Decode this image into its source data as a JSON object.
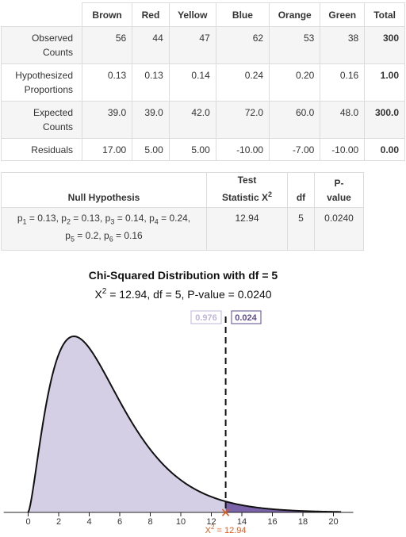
{
  "counts_table": {
    "columns": [
      "Brown",
      "Red",
      "Yellow",
      "Blue",
      "Orange",
      "Green",
      "Total"
    ],
    "rows": [
      {
        "label_line1": "Observed",
        "label_line2": "Counts",
        "values": [
          "56",
          "44",
          "47",
          "62",
          "53",
          "38"
        ],
        "total": "300"
      },
      {
        "label_line1": "Hypothesized",
        "label_line2": "Proportions",
        "values": [
          "0.13",
          "0.13",
          "0.14",
          "0.24",
          "0.20",
          "0.16"
        ],
        "total": "1.00"
      },
      {
        "label_line1": "Expected",
        "label_line2": "Counts",
        "values": [
          "39.0",
          "39.0",
          "42.0",
          "72.0",
          "60.0",
          "48.0"
        ],
        "total": "300.0"
      },
      {
        "label_line1": "Residuals",
        "label_line2": "",
        "values": [
          "17.00",
          "5.00",
          "5.00",
          "-10.00",
          "-7.00",
          "-10.00"
        ],
        "total": "0.00"
      }
    ]
  },
  "test_table": {
    "h_null": "Null Hypothesis",
    "h_stat_line1": "Test",
    "h_stat_line2": "Statistic X",
    "h_stat_sup": "2",
    "h_df": "df",
    "h_p_line1": "P-",
    "h_p_line2": "value",
    "null_p": "p",
    "null_1": "1",
    "null_1v": " = 0.13, ",
    "null_2": "2",
    "null_2v": " = 0.13, ",
    "null_3": "3",
    "null_3v": " = 0.14, ",
    "null_4": "4",
    "null_4v": " = 0.24,",
    "null_5": "5",
    "null_5v": " = 0.2, ",
    "null_6": "6",
    "null_6v": " = 0.16",
    "stat": "12.94",
    "df": "5",
    "pvalue": "0.0240"
  },
  "chart_data": {
    "type": "area",
    "distribution": "chi-squared",
    "df": 5,
    "title": "Chi-Squared Distribution with df = 5",
    "subtitle_a": "X",
    "subtitle_sup": "2",
    "subtitle_b": " =  12.94, df  =  5, P-value  =  0.0240",
    "x_ticks": [
      "0",
      "2",
      "4",
      "6",
      "8",
      "10",
      "12",
      "14",
      "16",
      "18",
      "20"
    ],
    "xlim": [
      -1.6,
      21.3
    ],
    "observed_x": 12.94,
    "left_area": "0.976",
    "right_area": "0.024",
    "obs_label_a": "X",
    "obs_label_sup": "2",
    "obs_label_b": " = 12.94",
    "colors": {
      "left_fill": "#d5cfe6",
      "right_fill": "#7b63aa",
      "curve": "#111111",
      "marker": "#e15a1b"
    }
  }
}
